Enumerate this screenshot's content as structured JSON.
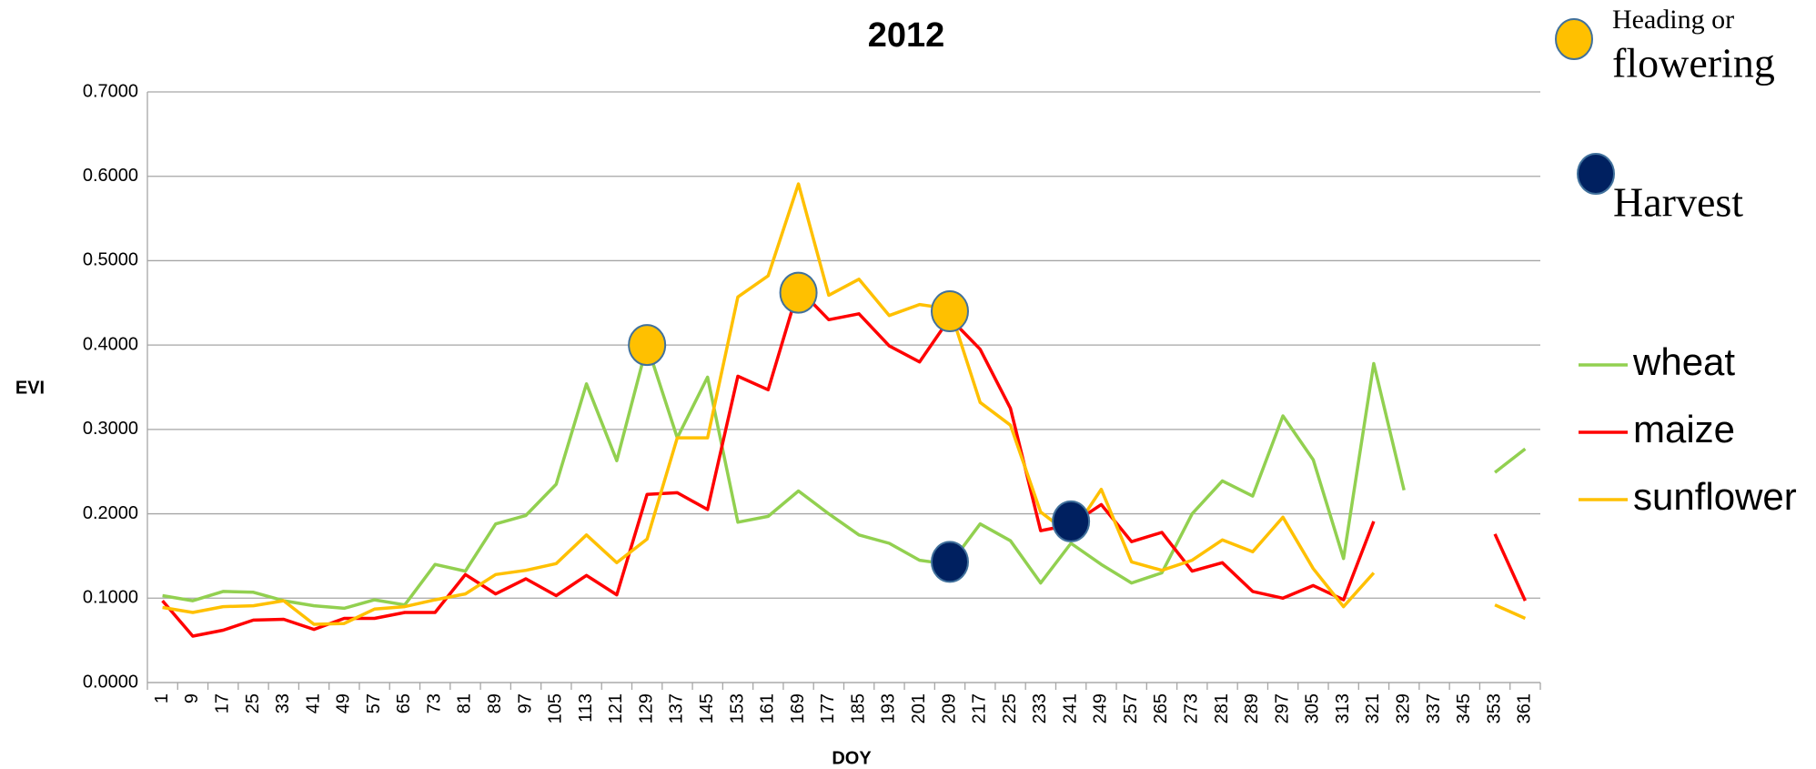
{
  "chart_data": {
    "type": "line",
    "title": "2012",
    "x_label": "DOY",
    "y_label": "EVI",
    "categories": [
      1,
      9,
      17,
      25,
      33,
      41,
      49,
      57,
      65,
      73,
      81,
      89,
      97,
      105,
      113,
      121,
      129,
      137,
      145,
      153,
      161,
      169,
      177,
      185,
      193,
      201,
      209,
      217,
      225,
      233,
      241,
      249,
      257,
      265,
      273,
      281,
      289,
      297,
      305,
      313,
      321,
      329,
      337,
      345,
      353,
      361
    ],
    "ylim": [
      0,
      0.7
    ],
    "yticks": [
      {
        "value": 0,
        "label": "0.0000"
      },
      {
        "value": 0.1,
        "label": "0.1000"
      },
      {
        "value": 0.2,
        "label": "0.2000"
      },
      {
        "value": 0.3,
        "label": "0.3000"
      },
      {
        "value": 0.4,
        "label": "0.4000"
      },
      {
        "value": 0.5,
        "label": "0.5000"
      },
      {
        "value": 0.6,
        "label": "0.6000"
      },
      {
        "value": 0.7,
        "label": "0.7000"
      }
    ],
    "grid": true,
    "series": [
      {
        "name": "wheat",
        "color": "#92d050",
        "values": [
          0.103,
          0.097,
          0.108,
          0.107,
          0.097,
          0.091,
          0.088,
          0.098,
          0.092,
          0.14,
          0.132,
          0.188,
          0.198,
          0.235,
          0.354,
          0.263,
          0.4,
          0.29,
          0.362,
          0.19,
          0.197,
          0.227,
          0.2,
          0.175,
          0.165,
          0.145,
          0.14,
          0.188,
          0.168,
          0.118,
          0.165,
          0.14,
          0.118,
          0.13,
          0.2,
          0.239,
          0.221,
          0.316,
          0.264,
          0.147,
          0.378,
          0.228,
          null,
          null,
          0.249,
          0.277
        ]
      },
      {
        "name": "maize",
        "color": "#ff0000",
        "values": [
          0.097,
          0.055,
          0.062,
          0.074,
          0.075,
          0.063,
          0.076,
          0.076,
          0.083,
          0.083,
          0.128,
          0.105,
          0.123,
          0.103,
          0.127,
          0.104,
          0.223,
          0.225,
          0.205,
          0.363,
          0.347,
          0.467,
          0.43,
          0.437,
          0.399,
          0.38,
          0.432,
          0.395,
          0.325,
          0.18,
          0.187,
          0.211,
          0.167,
          0.178,
          0.132,
          0.142,
          0.108,
          0.1,
          0.115,
          0.098,
          0.191,
          null,
          null,
          null,
          0.176,
          0.097
        ]
      },
      {
        "name": "sunflower",
        "color": "#ffc000",
        "values": [
          0.089,
          0.083,
          0.09,
          0.091,
          0.097,
          0.069,
          0.07,
          0.087,
          0.09,
          0.098,
          0.105,
          0.128,
          0.133,
          0.141,
          0.175,
          0.142,
          0.17,
          0.29,
          0.29,
          0.457,
          0.482,
          0.591,
          0.459,
          0.478,
          0.435,
          0.448,
          0.443,
          0.332,
          0.305,
          0.202,
          0.175,
          0.229,
          0.143,
          0.133,
          0.145,
          0.169,
          0.155,
          0.196,
          0.135,
          0.09,
          0.13,
          null,
          null,
          null,
          0.092,
          0.076
        ]
      }
    ],
    "markers": [
      {
        "label": [
          "Heading or",
          "flowering"
        ],
        "color": "#ffc000",
        "points": [
          {
            "x": 129,
            "y": 0.4
          },
          {
            "x": 169,
            "y": 0.462
          },
          {
            "x": 209,
            "y": 0.44
          }
        ]
      },
      {
        "label": [
          "Harvest"
        ],
        "color": "#002060",
        "points": [
          {
            "x": 209,
            "y": 0.143
          },
          {
            "x": 241,
            "y": 0.191
          }
        ]
      }
    ]
  }
}
